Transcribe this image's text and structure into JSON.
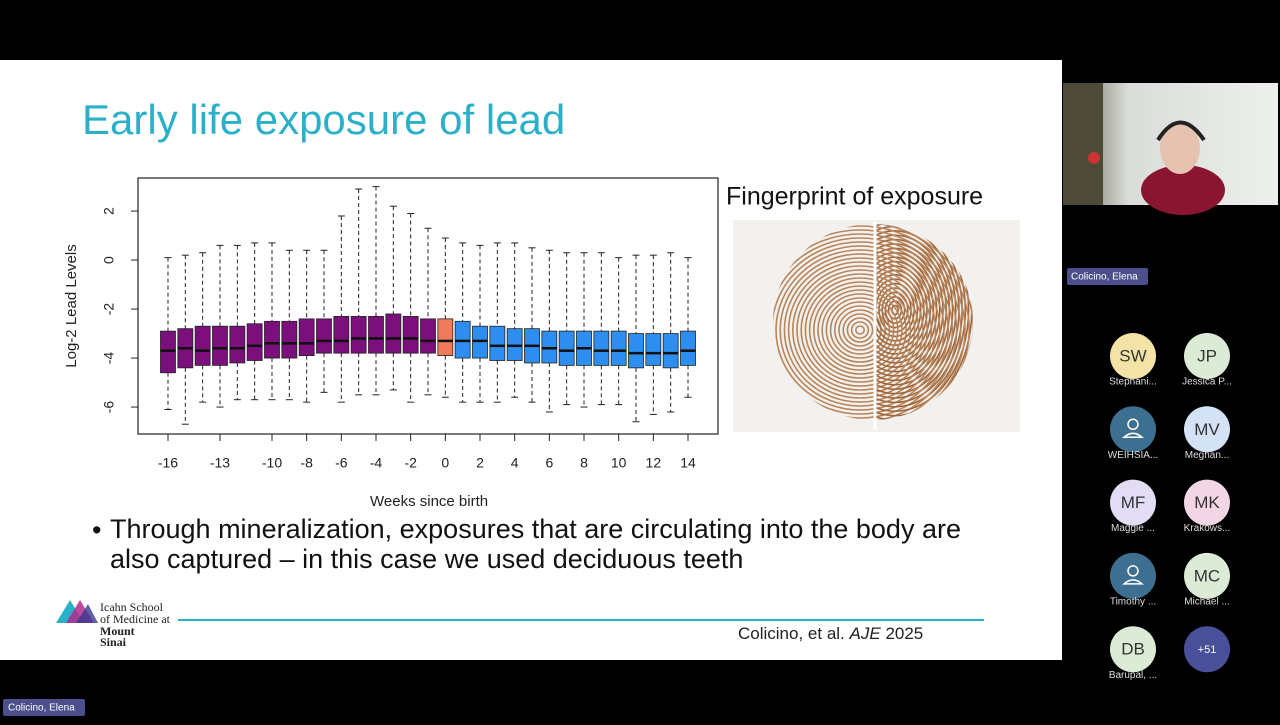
{
  "slide": {
    "title": "Early life exposure of lead",
    "image_title": "Fingerprint of exposure",
    "bullet": "Through mineralization, exposures that are circulating into the body are also captured – in this case we used deciduous teeth",
    "logo": [
      "Icahn School",
      "of Medicine at",
      "Mount",
      "Sinai"
    ],
    "citation": {
      "authors": "Colicino, et al.",
      "journal": "AJE",
      "year": "2025"
    }
  },
  "chart_data": {
    "type": "box",
    "x_label": "Weeks since birth",
    "y_label": "Log-2 Lead Levels",
    "x": [
      -16,
      -15,
      -14,
      -13,
      -12,
      -11,
      -10,
      -9,
      -8,
      -7,
      -6,
      -5,
      -4,
      -3,
      -2,
      -1,
      0,
      1,
      2,
      3,
      4,
      5,
      6,
      7,
      8,
      9,
      10,
      11,
      12,
      13,
      14
    ],
    "min": [
      -6.1,
      -6.7,
      -5.8,
      -6.0,
      -5.7,
      -5.7,
      -5.7,
      -5.7,
      -5.8,
      -5.4,
      -5.8,
      -5.5,
      -5.5,
      -5.3,
      -5.8,
      -5.5,
      -5.6,
      -5.8,
      -5.8,
      -5.8,
      -5.6,
      -5.8,
      -6.2,
      -5.9,
      -6.0,
      -5.9,
      -5.9,
      -6.6,
      -6.3,
      -6.2,
      -5.6
    ],
    "q1": [
      -4.6,
      -4.4,
      -4.3,
      -4.3,
      -4.2,
      -4.1,
      -4.0,
      -4.0,
      -3.9,
      -3.8,
      -3.8,
      -3.8,
      -3.8,
      -3.8,
      -3.8,
      -3.8,
      -3.9,
      -4.0,
      -4.0,
      -4.1,
      -4.1,
      -4.2,
      -4.2,
      -4.3,
      -4.3,
      -4.3,
      -4.3,
      -4.4,
      -4.3,
      -4.4,
      -4.3
    ],
    "median": [
      -3.7,
      -3.6,
      -3.7,
      -3.6,
      -3.6,
      -3.5,
      -3.4,
      -3.4,
      -3.4,
      -3.3,
      -3.3,
      -3.2,
      -3.2,
      -3.2,
      -3.2,
      -3.3,
      -3.3,
      -3.3,
      -3.3,
      -3.5,
      -3.5,
      -3.5,
      -3.6,
      -3.7,
      -3.6,
      -3.7,
      -3.7,
      -3.8,
      -3.8,
      -3.8,
      -3.7
    ],
    "q3": [
      -2.9,
      -2.8,
      -2.7,
      -2.7,
      -2.7,
      -2.6,
      -2.5,
      -2.5,
      -2.4,
      -2.4,
      -2.3,
      -2.3,
      -2.3,
      -2.2,
      -2.3,
      -2.4,
      -2.4,
      -2.5,
      -2.7,
      -2.7,
      -2.8,
      -2.8,
      -2.9,
      -2.9,
      -2.9,
      -2.9,
      -2.9,
      -3.0,
      -3.0,
      -3.0,
      -2.9
    ],
    "max": [
      0.1,
      0.2,
      0.3,
      0.6,
      0.6,
      0.7,
      0.7,
      0.4,
      0.4,
      0.4,
      1.8,
      2.9,
      3.0,
      2.2,
      1.9,
      1.3,
      0.9,
      0.7,
      0.6,
      0.7,
      0.7,
      0.5,
      0.4,
      0.3,
      0.3,
      0.3,
      0.1,
      0.2,
      0.2,
      0.3,
      0.1
    ],
    "colors": [
      "#7b0f7b",
      "#7b0f7b",
      "#7b0f7b",
      "#7b0f7b",
      "#7b0f7b",
      "#7b0f7b",
      "#7b0f7b",
      "#7b0f7b",
      "#7b0f7b",
      "#7b0f7b",
      "#7b0f7b",
      "#7b0f7b",
      "#7b0f7b",
      "#7b0f7b",
      "#7b0f7b",
      "#7b0f7b",
      "#f07a5a",
      "#2e8ef0",
      "#2e8ef0",
      "#2e8ef0",
      "#2e8ef0",
      "#2e8ef0",
      "#2e8ef0",
      "#2e8ef0",
      "#2e8ef0",
      "#2e8ef0",
      "#2e8ef0",
      "#2e8ef0",
      "#2e8ef0",
      "#2e8ef0",
      "#2e8ef0"
    ],
    "xlim": [
      -17.73,
      15.73
    ],
    "ylim": [
      -7.1,
      3.35
    ],
    "xticks": [
      -16,
      -13,
      -10,
      -8,
      -6,
      -4,
      -2,
      0,
      2,
      4,
      6,
      8,
      10,
      12,
      14
    ],
    "yticks": [
      -6,
      -4,
      -2,
      0,
      2
    ]
  },
  "speaker": {
    "name": "Colicino, Elena"
  },
  "participants": [
    {
      "initials": "SW",
      "name": "Stephani...",
      "color": "#f3e3a6"
    },
    {
      "initials": "JP",
      "name": "Jessica P...",
      "color": "#dcebd6"
    },
    {
      "name": "WEIHSIA...",
      "color": "#3d7090"
    },
    {
      "initials": "MV",
      "name": "Meghan...",
      "color": "#d3e2f4"
    },
    {
      "initials": "MF",
      "name": "Maggie ...",
      "color": "#e2dcf4"
    },
    {
      "initials": "MK",
      "name": "Krakows...",
      "color": "#f3d6e6"
    },
    {
      "name": "Timothy ...",
      "color": "#3d7090"
    },
    {
      "initials": "MC",
      "name": "Michael ...",
      "color": "#dcebd6"
    },
    {
      "initials": "DB",
      "name": "Barupal, ...",
      "color": "#dcebd6"
    },
    {
      "initials": "+51",
      "color": "#4a4f9a"
    }
  ],
  "presenter_label": "Colicino, Elena"
}
